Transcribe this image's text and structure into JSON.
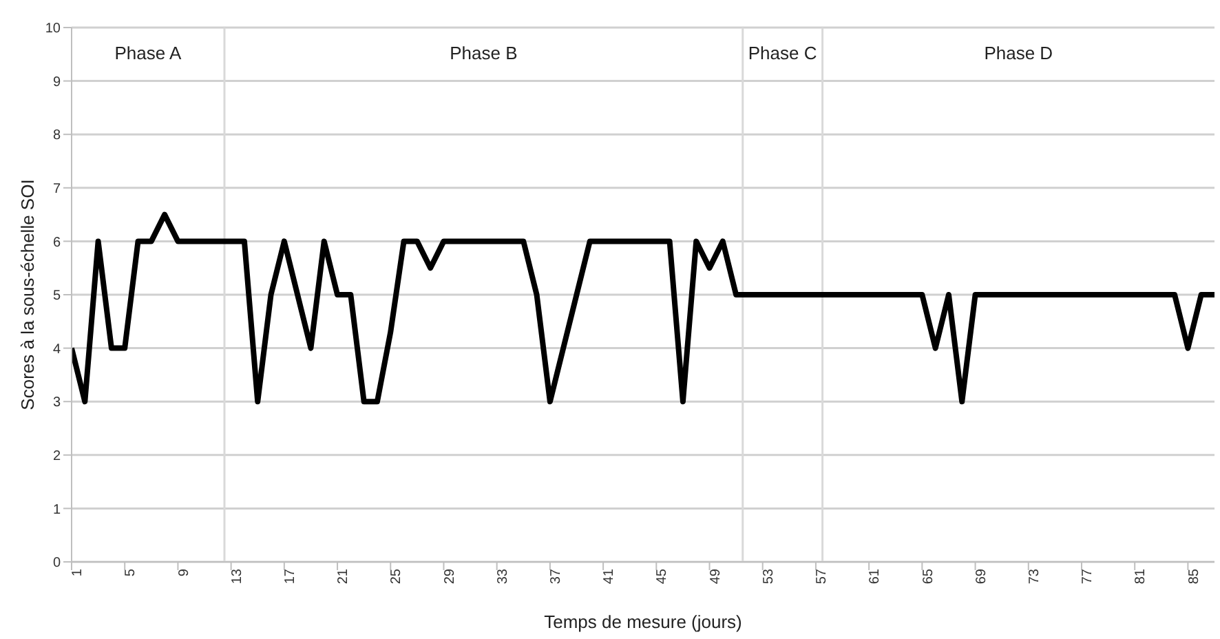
{
  "chart_data": {
    "type": "line",
    "xlabel": "Temps de mesure (jours)",
    "ylabel": "Scores à la sous-échelle SOI",
    "x": [
      1,
      2,
      3,
      4,
      5,
      6,
      7,
      8,
      9,
      10,
      11,
      12,
      13,
      14,
      15,
      16,
      17,
      18,
      19,
      20,
      21,
      22,
      23,
      24,
      25,
      26,
      27,
      28,
      29,
      30,
      31,
      32,
      33,
      34,
      35,
      36,
      37,
      38,
      39,
      40,
      41,
      42,
      43,
      44,
      45,
      46,
      47,
      48,
      49,
      50,
      51,
      52,
      53,
      54,
      55,
      56,
      57,
      58,
      59,
      60,
      61,
      62,
      63,
      64,
      65,
      66,
      67,
      68,
      69,
      70,
      71,
      72,
      73,
      74,
      75,
      76,
      77,
      78,
      79,
      80,
      81,
      82,
      83,
      84,
      85,
      86,
      87
    ],
    "series": [
      {
        "color": "#000000",
        "values": [
          4,
          3,
          6,
          4,
          4,
          6,
          6,
          6.5,
          6,
          6,
          6,
          6,
          6,
          6,
          3,
          5,
          6,
          5,
          4,
          6,
          5,
          5,
          3,
          3,
          4.3,
          6,
          6,
          5.5,
          6,
          6,
          6,
          6,
          6,
          6,
          6,
          5,
          3,
          4,
          5,
          6,
          6,
          6,
          6,
          6,
          6,
          6,
          3,
          6,
          5.5,
          6,
          5,
          5,
          5,
          5,
          5,
          5,
          5,
          5,
          5,
          5,
          5,
          5,
          5,
          5,
          5,
          4,
          5,
          3,
          5,
          5,
          5,
          5,
          5,
          5,
          5,
          5,
          5,
          5,
          5,
          5,
          5,
          5,
          5,
          5,
          4,
          5,
          5
        ]
      }
    ],
    "xlim": [
      1,
      87
    ],
    "xticks": [
      1,
      5,
      9,
      13,
      17,
      21,
      25,
      29,
      33,
      37,
      41,
      45,
      49,
      53,
      57,
      61,
      65,
      69,
      73,
      77,
      81,
      85
    ],
    "ylim": [
      0,
      10
    ],
    "yticks": [
      0,
      1,
      2,
      3,
      4,
      5,
      6,
      7,
      8,
      9,
      10
    ],
    "grid": "y",
    "legend": false,
    "marker": "none",
    "line_style": "solid",
    "ref_lines": [
      {
        "axis": "x",
        "value": 12.5,
        "color": "#d9d9d9"
      },
      {
        "axis": "x",
        "value": 51.5,
        "color": "#d9d9d9"
      },
      {
        "axis": "x",
        "value": 57.5,
        "color": "#d9d9d9"
      }
    ],
    "annotations": [
      "Phase A",
      "Phase B",
      "Phase C",
      "Phase D"
    ]
  }
}
